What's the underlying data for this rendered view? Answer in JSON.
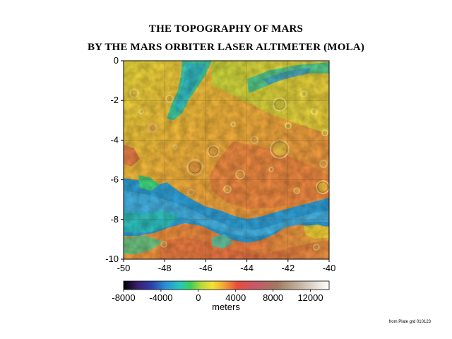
{
  "title_line1": "THE TOPOGRAPHY OF MARS",
  "title_line2": "BY THE MARS ORBITER LASER ALTIMETER (MOLA)",
  "map": {
    "x_ticks": [
      -50,
      -48,
      -46,
      -44,
      -42,
      -40
    ],
    "y_ticks": [
      0,
      -2,
      -4,
      -6,
      -8,
      -10
    ],
    "x_range": [
      -50,
      -40
    ],
    "y_range": [
      -10,
      0
    ]
  },
  "colorbar": {
    "range": [
      -8000,
      14000
    ],
    "ticks": [
      -8000,
      -4000,
      0,
      4000,
      8000,
      12000
    ],
    "tick_labels": [
      "-8000",
      "-4000",
      "0",
      "4000",
      "8000",
      "12000"
    ],
    "label": "meters",
    "stops": [
      {
        "value": -8000,
        "color": "#000000"
      },
      {
        "value": -6500,
        "color": "#3a2070"
      },
      {
        "value": -5000,
        "color": "#2c3fa8"
      },
      {
        "value": -3500,
        "color": "#2a8fd6"
      },
      {
        "value": -2000,
        "color": "#27c6c0"
      },
      {
        "value": -800,
        "color": "#3ccf55"
      },
      {
        "value": 300,
        "color": "#b6d93a"
      },
      {
        "value": 1500,
        "color": "#f2e431"
      },
      {
        "value": 2800,
        "color": "#f2a135"
      },
      {
        "value": 4200,
        "color": "#e84c3b"
      },
      {
        "value": 6000,
        "color": "#c8576a"
      },
      {
        "value": 8500,
        "color": "#a07a5f"
      },
      {
        "value": 11000,
        "color": "#c7b8a6"
      },
      {
        "value": 14000,
        "color": "#ffffff"
      }
    ]
  },
  "credit": "from Plate grd 010123"
}
